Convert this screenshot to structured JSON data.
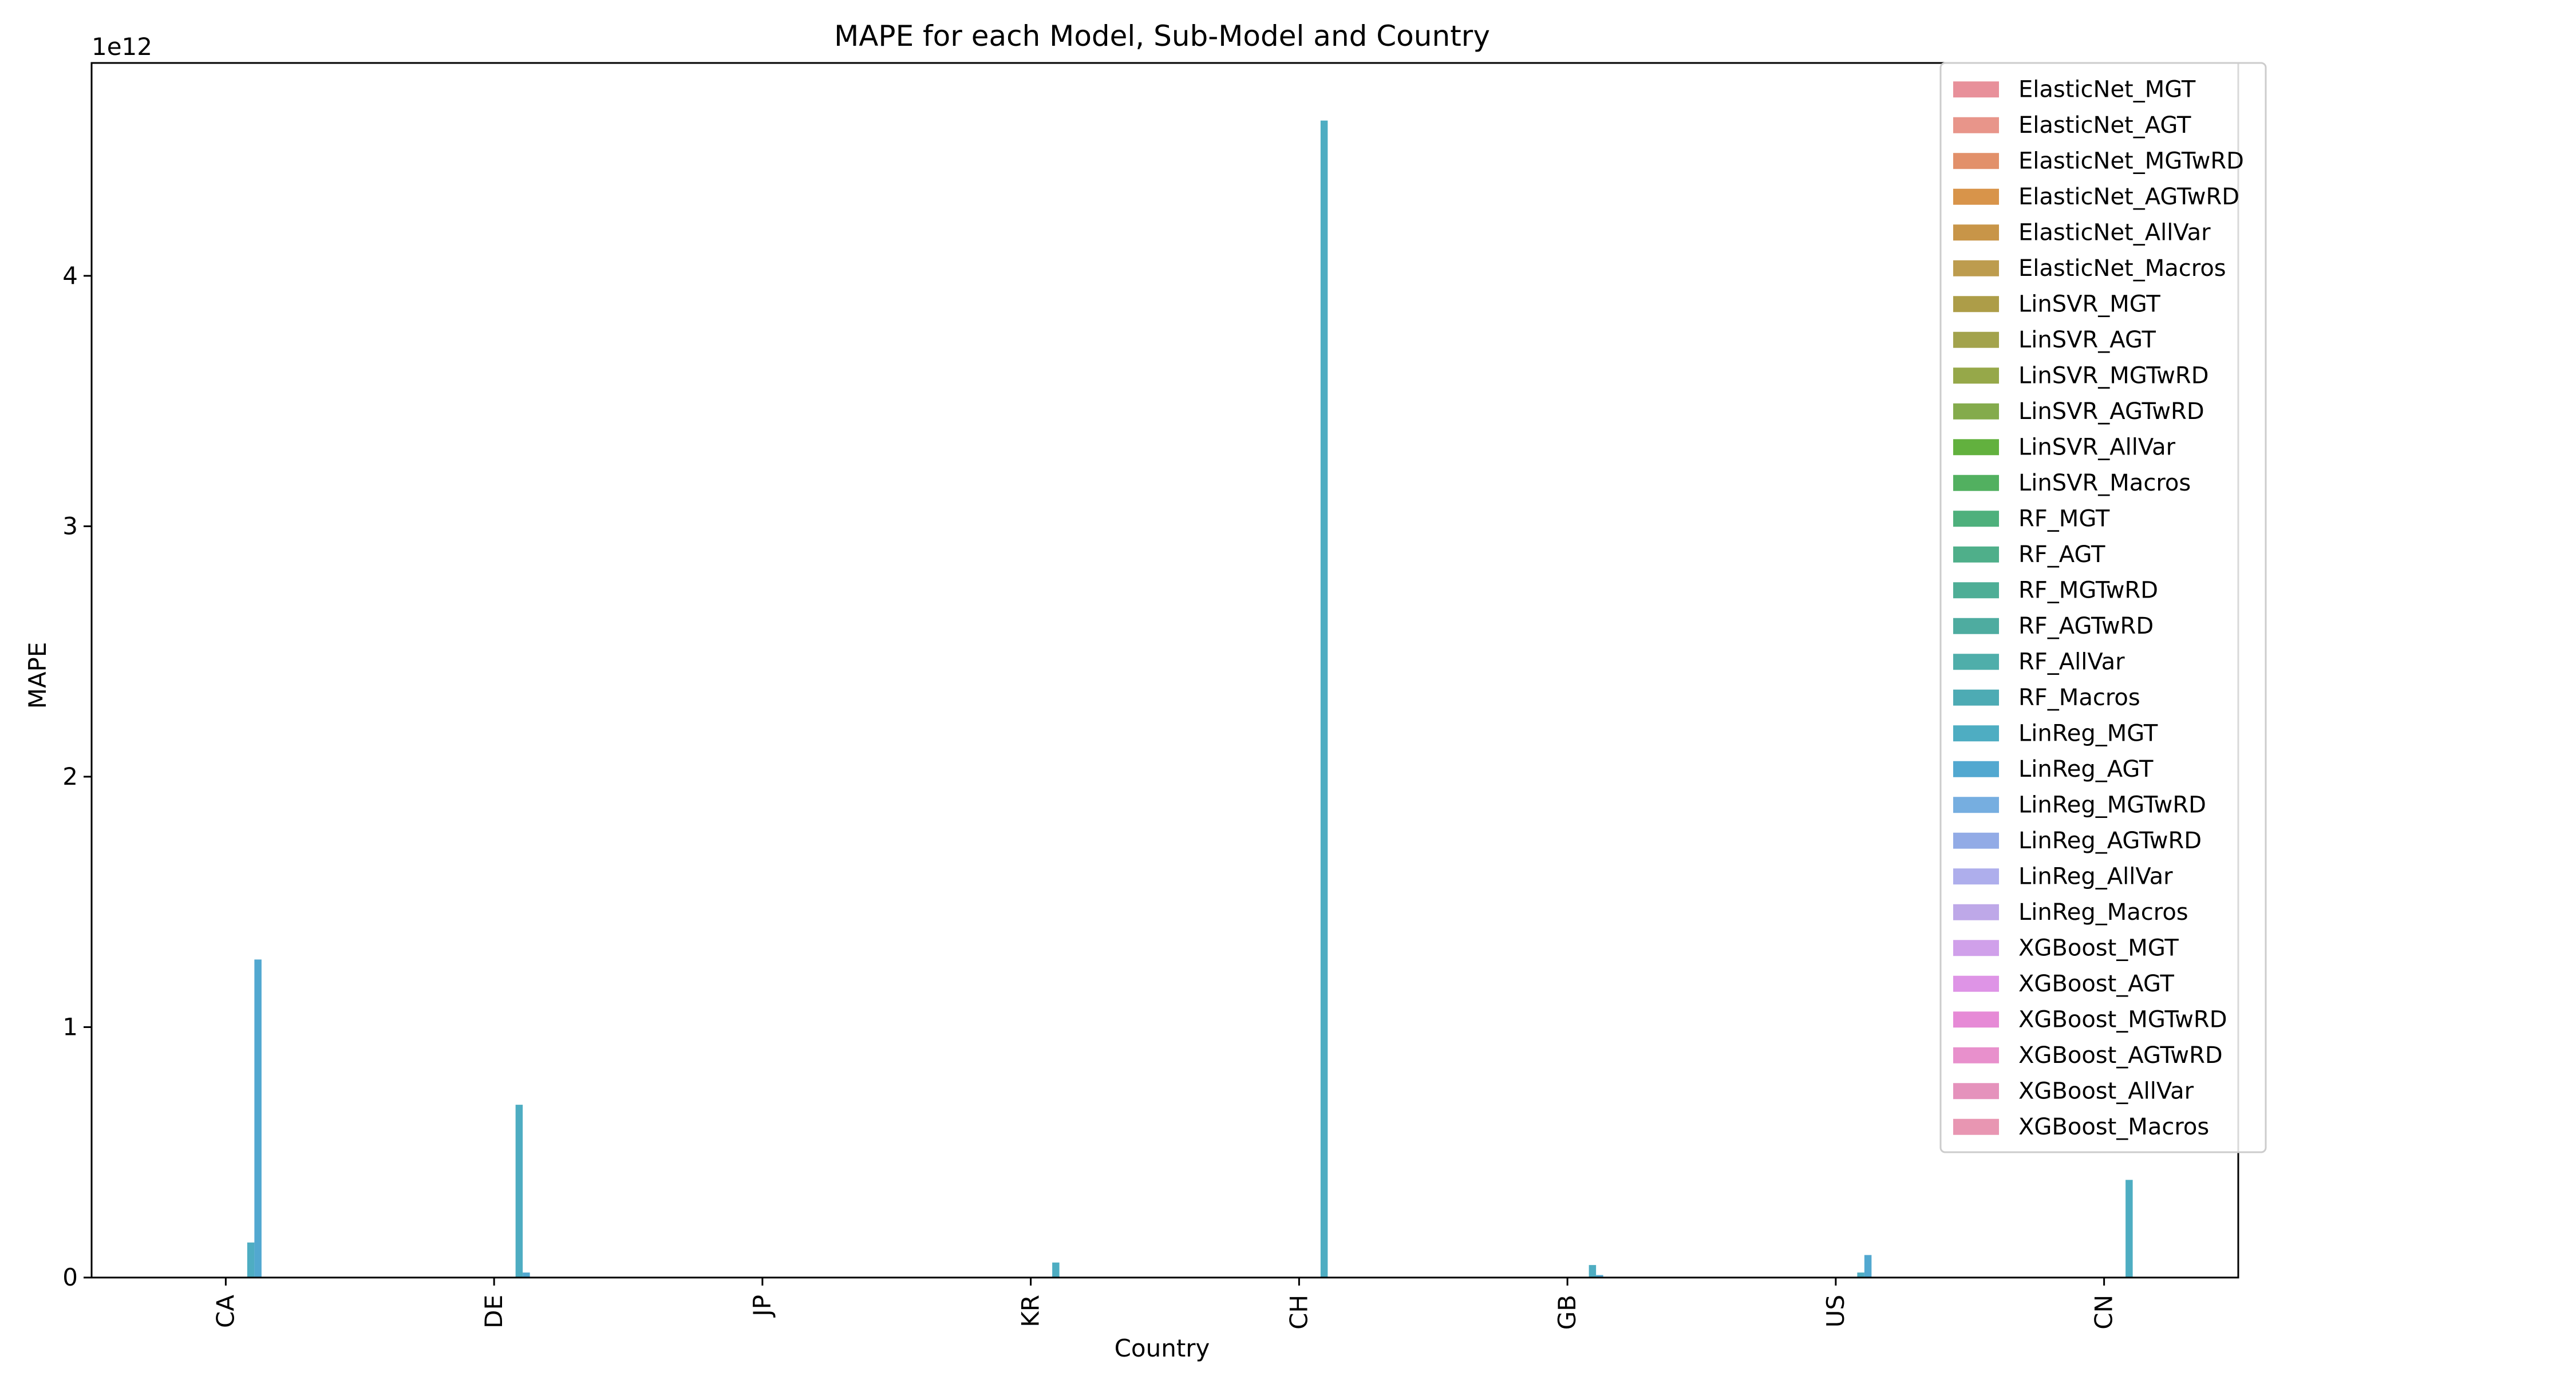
{
  "chart_data": {
    "type": "bar",
    "title": "MAPE for each Model, Sub-Model and Country",
    "xlabel": "Country",
    "ylabel": "MAPE",
    "y_offset_label": "1e12",
    "y_unit_scale": 1000000000000.0,
    "ylim": [
      0,
      4.85
    ],
    "yticks": [
      0,
      1,
      2,
      3,
      4
    ],
    "ytick_labels": [
      "0",
      "1",
      "2",
      "3",
      "4"
    ],
    "grid": false,
    "legend_position": "top-right",
    "categories": [
      "CA",
      "DE",
      "JP",
      "KR",
      "CH",
      "GB",
      "US",
      "CN"
    ],
    "series": [
      {
        "name": "ElasticNet_MGT",
        "color": "#e8909a",
        "values": [
          0,
          0,
          0,
          0,
          0,
          0,
          0,
          0
        ]
      },
      {
        "name": "ElasticNet_AGT",
        "color": "#e8958a",
        "values": [
          0,
          0,
          0,
          0,
          0,
          0,
          0,
          0
        ]
      },
      {
        "name": "ElasticNet_MGTwRD",
        "color": "#e2906a",
        "values": [
          0,
          0,
          0,
          0,
          0,
          0,
          0,
          0
        ]
      },
      {
        "name": "ElasticNet_AGTwRD",
        "color": "#d8944a",
        "values": [
          0,
          0,
          0,
          0,
          0,
          0,
          0,
          0
        ]
      },
      {
        "name": "ElasticNet_AllVar",
        "color": "#c89548",
        "values": [
          0,
          0,
          0,
          0,
          0,
          0,
          0,
          0
        ]
      },
      {
        "name": "ElasticNet_Macros",
        "color": "#bd9c4e",
        "values": [
          0,
          0,
          0,
          0,
          0,
          0,
          0,
          0
        ]
      },
      {
        "name": "LinSVR_MGT",
        "color": "#ad9d48",
        "values": [
          0,
          0,
          0,
          0,
          0,
          0,
          0,
          0
        ]
      },
      {
        "name": "LinSVR_AGT",
        "color": "#a3a34c",
        "values": [
          0,
          0,
          0,
          0,
          0,
          0,
          0,
          0
        ]
      },
      {
        "name": "LinSVR_MGTwRD",
        "color": "#96a849",
        "values": [
          0,
          0,
          0,
          0,
          0,
          0,
          0,
          0
        ]
      },
      {
        "name": "LinSVR_AGTwRD",
        "color": "#84ab4c",
        "values": [
          0,
          0,
          0,
          0,
          0,
          0,
          0,
          0
        ]
      },
      {
        "name": "LinSVR_AllVar",
        "color": "#62b13e",
        "values": [
          0,
          0,
          0,
          0,
          0,
          0,
          0,
          0
        ]
      },
      {
        "name": "LinSVR_Macros",
        "color": "#52b060",
        "values": [
          0,
          0,
          0,
          0,
          0,
          0,
          0,
          0
        ]
      },
      {
        "name": "RF_MGT",
        "color": "#4eb07c",
        "values": [
          0,
          0,
          0,
          0,
          0,
          0,
          0,
          0
        ]
      },
      {
        "name": "RF_AGT",
        "color": "#4faf8a",
        "values": [
          0,
          0,
          0,
          0,
          0,
          0,
          0,
          0
        ]
      },
      {
        "name": "RF_MGTwRD",
        "color": "#4eae96",
        "values": [
          0,
          0,
          0,
          0,
          0,
          0,
          0,
          0
        ]
      },
      {
        "name": "RF_AGTwRD",
        "color": "#4eaca0",
        "values": [
          0,
          0,
          0,
          0,
          0,
          0,
          0,
          0
        ]
      },
      {
        "name": "RF_AllVar",
        "color": "#4faeaa",
        "values": [
          0,
          0,
          0,
          0,
          0,
          0,
          0,
          0
        ]
      },
      {
        "name": "RF_Macros",
        "color": "#4dabb4",
        "values": [
          0,
          0,
          0,
          0,
          0,
          0,
          0,
          0
        ]
      },
      {
        "name": "LinReg_MGT",
        "color": "#4eadc2",
        "values": [
          0.14,
          0.69,
          0,
          0.06,
          4.62,
          0.05,
          0.02,
          0.39
        ]
      },
      {
        "name": "LinReg_AGT",
        "color": "#52a8d0",
        "values": [
          1.27,
          0.02,
          0,
          0,
          0,
          0.01,
          0.09,
          0
        ]
      },
      {
        "name": "LinReg_MGTwRD",
        "color": "#76aee0",
        "values": [
          0,
          0,
          0,
          0,
          0,
          0,
          0,
          0
        ]
      },
      {
        "name": "LinReg_AGTwRD",
        "color": "#92abe6",
        "values": [
          0,
          0,
          0,
          0,
          0,
          0,
          0,
          0
        ]
      },
      {
        "name": "LinReg_AllVar",
        "color": "#aeaeec",
        "values": [
          0,
          0,
          0,
          0,
          0,
          0,
          0,
          0
        ]
      },
      {
        "name": "LinReg_Macros",
        "color": "#bea8e8",
        "values": [
          0,
          0,
          0,
          0,
          0,
          0,
          0,
          0
        ]
      },
      {
        "name": "XGBoost_MGT",
        "color": "#d0a0ea",
        "values": [
          0,
          0,
          0,
          0,
          0,
          0,
          0,
          0
        ]
      },
      {
        "name": "XGBoost_AGT",
        "color": "#de94e6",
        "values": [
          0,
          0,
          0,
          0,
          0,
          0,
          0,
          0
        ]
      },
      {
        "name": "XGBoost_MGTwRD",
        "color": "#e68ad6",
        "values": [
          0,
          0,
          0,
          0,
          0,
          0,
          0,
          0
        ]
      },
      {
        "name": "XGBoost_AGTwRD",
        "color": "#e890cc",
        "values": [
          0,
          0,
          0,
          0,
          0,
          0,
          0,
          0
        ]
      },
      {
        "name": "XGBoost_AllVar",
        "color": "#e592bc",
        "values": [
          0,
          0,
          0,
          0,
          0,
          0,
          0,
          0
        ]
      },
      {
        "name": "XGBoost_Macros",
        "color": "#e896b2",
        "values": [
          0,
          0,
          0,
          0,
          0,
          0,
          0,
          0
        ]
      }
    ]
  }
}
